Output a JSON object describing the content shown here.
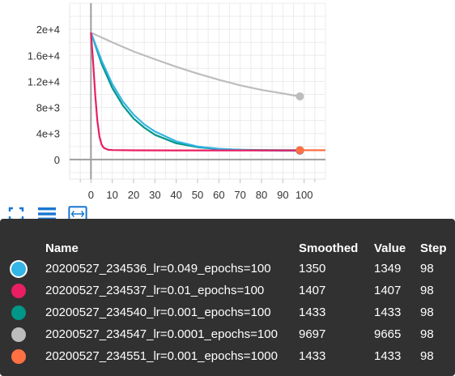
{
  "chart_data": {
    "type": "line",
    "xlabel": "",
    "ylabel": "",
    "xlim": [
      -10,
      110
    ],
    "ylim": [
      -3000,
      24000
    ],
    "x_ticks": [
      "0",
      "10",
      "20",
      "30",
      "40",
      "50",
      "60",
      "70",
      "80",
      "90",
      "100"
    ],
    "x_tick_values": [
      0,
      10,
      20,
      30,
      40,
      50,
      60,
      70,
      80,
      90,
      100
    ],
    "y_ticks": [
      "0",
      "4e+3",
      "8e+3",
      "1.2e+4",
      "1.6e+4",
      "2e+4"
    ],
    "y_tick_values": [
      0,
      4000,
      8000,
      12000,
      16000,
      20000
    ],
    "grid": true,
    "series": [
      {
        "name": "20200527_234547_lr=0.0001_epochs=100",
        "color": "#bdbdbd",
        "x": [
          0,
          10,
          20,
          30,
          40,
          50,
          60,
          70,
          80,
          90,
          98
        ],
        "y": [
          19500,
          18000,
          16600,
          15400,
          14250,
          13200,
          12250,
          11400,
          10700,
          10150,
          9697
        ]
      },
      {
        "name": "20200527_234540_lr=0.001_epochs=100",
        "color": "#009688",
        "x": [
          0,
          5,
          10,
          15,
          20,
          25,
          30,
          40,
          50,
          60,
          70,
          80,
          90,
          98
        ],
        "y": [
          19500,
          14700,
          11000,
          8300,
          6300,
          4900,
          3800,
          2500,
          1900,
          1600,
          1500,
          1460,
          1440,
          1433
        ]
      },
      {
        "name": "20200527_234536_lr=0.049_epochs=100",
        "color": "#33b5e5",
        "x": [
          0,
          5,
          10,
          15,
          20,
          25,
          30,
          40,
          50,
          60,
          70,
          80,
          90,
          98
        ],
        "y": [
          19500,
          15200,
          11600,
          8900,
          6900,
          5400,
          4300,
          2800,
          2000,
          1650,
          1480,
          1400,
          1360,
          1350
        ]
      },
      {
        "name": "20200527_234537_lr=0.01_epochs=100",
        "color": "#e91e63",
        "x": [
          0,
          1,
          2,
          3,
          4,
          5,
          6,
          8,
          10,
          20,
          40,
          60,
          80,
          98
        ],
        "y": [
          19500,
          15000,
          10000,
          6000,
          3500,
          2300,
          1800,
          1500,
          1450,
          1420,
          1410,
          1408,
          1407,
          1407
        ]
      },
      {
        "name": "20200527_234551_lr=0.001_epochs=1000",
        "color": "#ff7043",
        "x": [
          98,
          110
        ],
        "y": [
          1433,
          1433
        ]
      }
    ],
    "highlight_step": 98
  },
  "toolbar": [
    {
      "name": "fullscreen-icon"
    },
    {
      "name": "toggle-y-axis-log-icon"
    },
    {
      "name": "fit-domain-icon"
    }
  ],
  "tooltip": {
    "headers": {
      "name": "Name",
      "smoothed": "Smoothed",
      "value": "Value",
      "step": "Step"
    },
    "rows": [
      {
        "color": "#33b5e5",
        "name": "20200527_234536_lr=0.049_epochs=100",
        "smoothed": "1350",
        "value": "1349",
        "step": "98"
      },
      {
        "color": "#e91e63",
        "name": "20200527_234537_lr=0.01_epochs=100",
        "smoothed": "1407",
        "value": "1407",
        "step": "98"
      },
      {
        "color": "#009688",
        "name": "20200527_234540_lr=0.001_epochs=100",
        "smoothed": "1433",
        "value": "1433",
        "step": "98"
      },
      {
        "color": "#bdbdbd",
        "name": "20200527_234547_lr=0.0001_epochs=100",
        "smoothed": "9697",
        "value": "9665",
        "step": "98"
      },
      {
        "color": "#ff7043",
        "name": "20200527_234551_lr=0.001_epochs=1000",
        "smoothed": "1433",
        "value": "1433",
        "step": "98"
      }
    ]
  }
}
